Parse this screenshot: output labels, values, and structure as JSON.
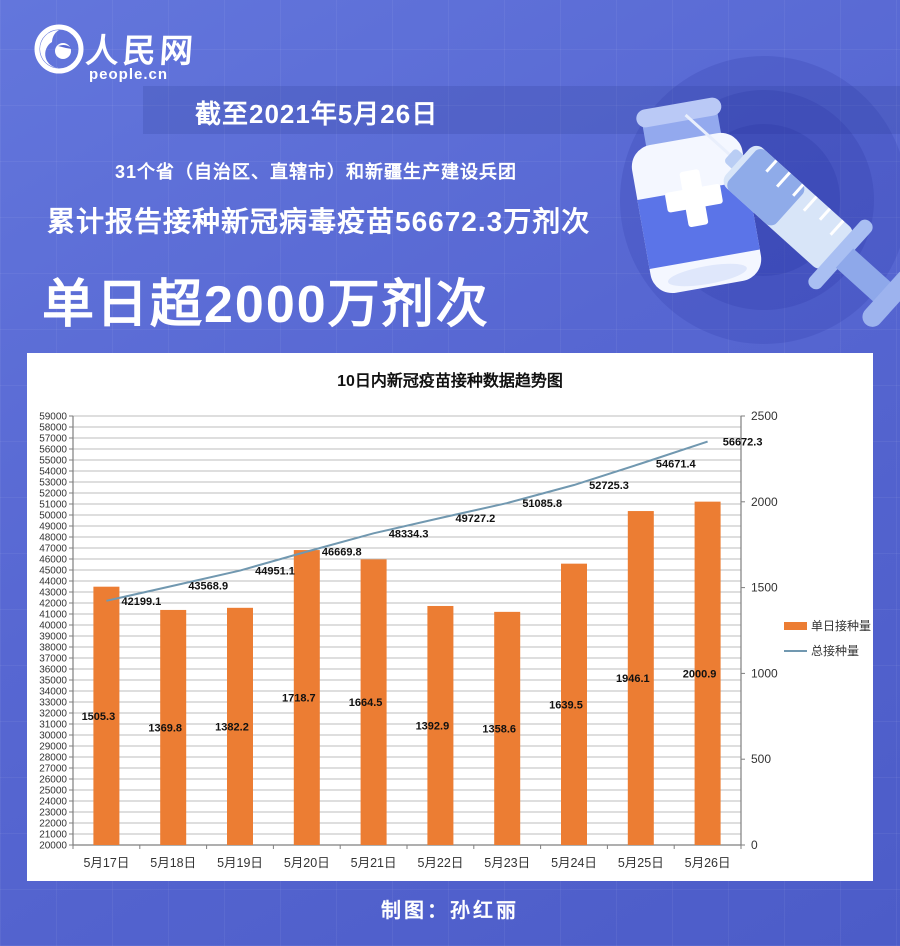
{
  "logo": {
    "brand": "人民网",
    "domain": "people.ccn_display",
    "domain_text": "people.cn"
  },
  "banner": {
    "date_line": "截至2021年5月26日",
    "scope_line": "31个省（自治区、直辖市）和新疆生产建设兵团",
    "cumulative_line": "累计报告接种新冠病毒疫苗56672.3万剂次",
    "headline": "单日超2000万剂次"
  },
  "footer": {
    "credit": "制图：孙红丽"
  },
  "icons": {
    "logo-icon": "crescent-swirl-circle",
    "vaccine-vial-icon": "medicine-vial-with-cross",
    "syringe-icon": "syringe"
  },
  "colors": {
    "background_top": "#6376dc",
    "background_bottom": "#4c5cc8",
    "bar": "#EC7D33",
    "line": "#7198B0",
    "panel": "#ffffff",
    "gridline": "#a9a9a9",
    "axis": "#7f7f7f",
    "label_text": "#111111",
    "axis_text": "#333333"
  },
  "chart_data": {
    "type": "bar",
    "subtype": "combo-bar-line",
    "title": "10日内新冠疫苗接种数据趋势图",
    "categories": [
      "5月17日",
      "5月18日",
      "5月19日",
      "5月20日",
      "5月21日",
      "5月22日",
      "5月23日",
      "5月24日",
      "5月25日",
      "5月26日"
    ],
    "series": [
      {
        "name": "单日接种量",
        "type": "bar",
        "axis": "right",
        "values": [
          1505.3,
          1369.8,
          1382.2,
          1718.7,
          1664.5,
          1392.9,
          1358.6,
          1639.5,
          1946.1,
          2000.9
        ]
      },
      {
        "name": "总接种量",
        "type": "line",
        "axis": "left",
        "values": [
          42199.1,
          43568.9,
          44951.1,
          46669.8,
          48334.3,
          49727.2,
          51085.8,
          52725.3,
          54671.4,
          56672.3
        ]
      }
    ],
    "left_axis": {
      "min": 20000,
      "max": 59000,
      "step": 1000
    },
    "right_axis": {
      "min": 0,
      "max": 2500,
      "step": 500
    },
    "grid": true,
    "legend_position": "right",
    "data_labels": true
  }
}
